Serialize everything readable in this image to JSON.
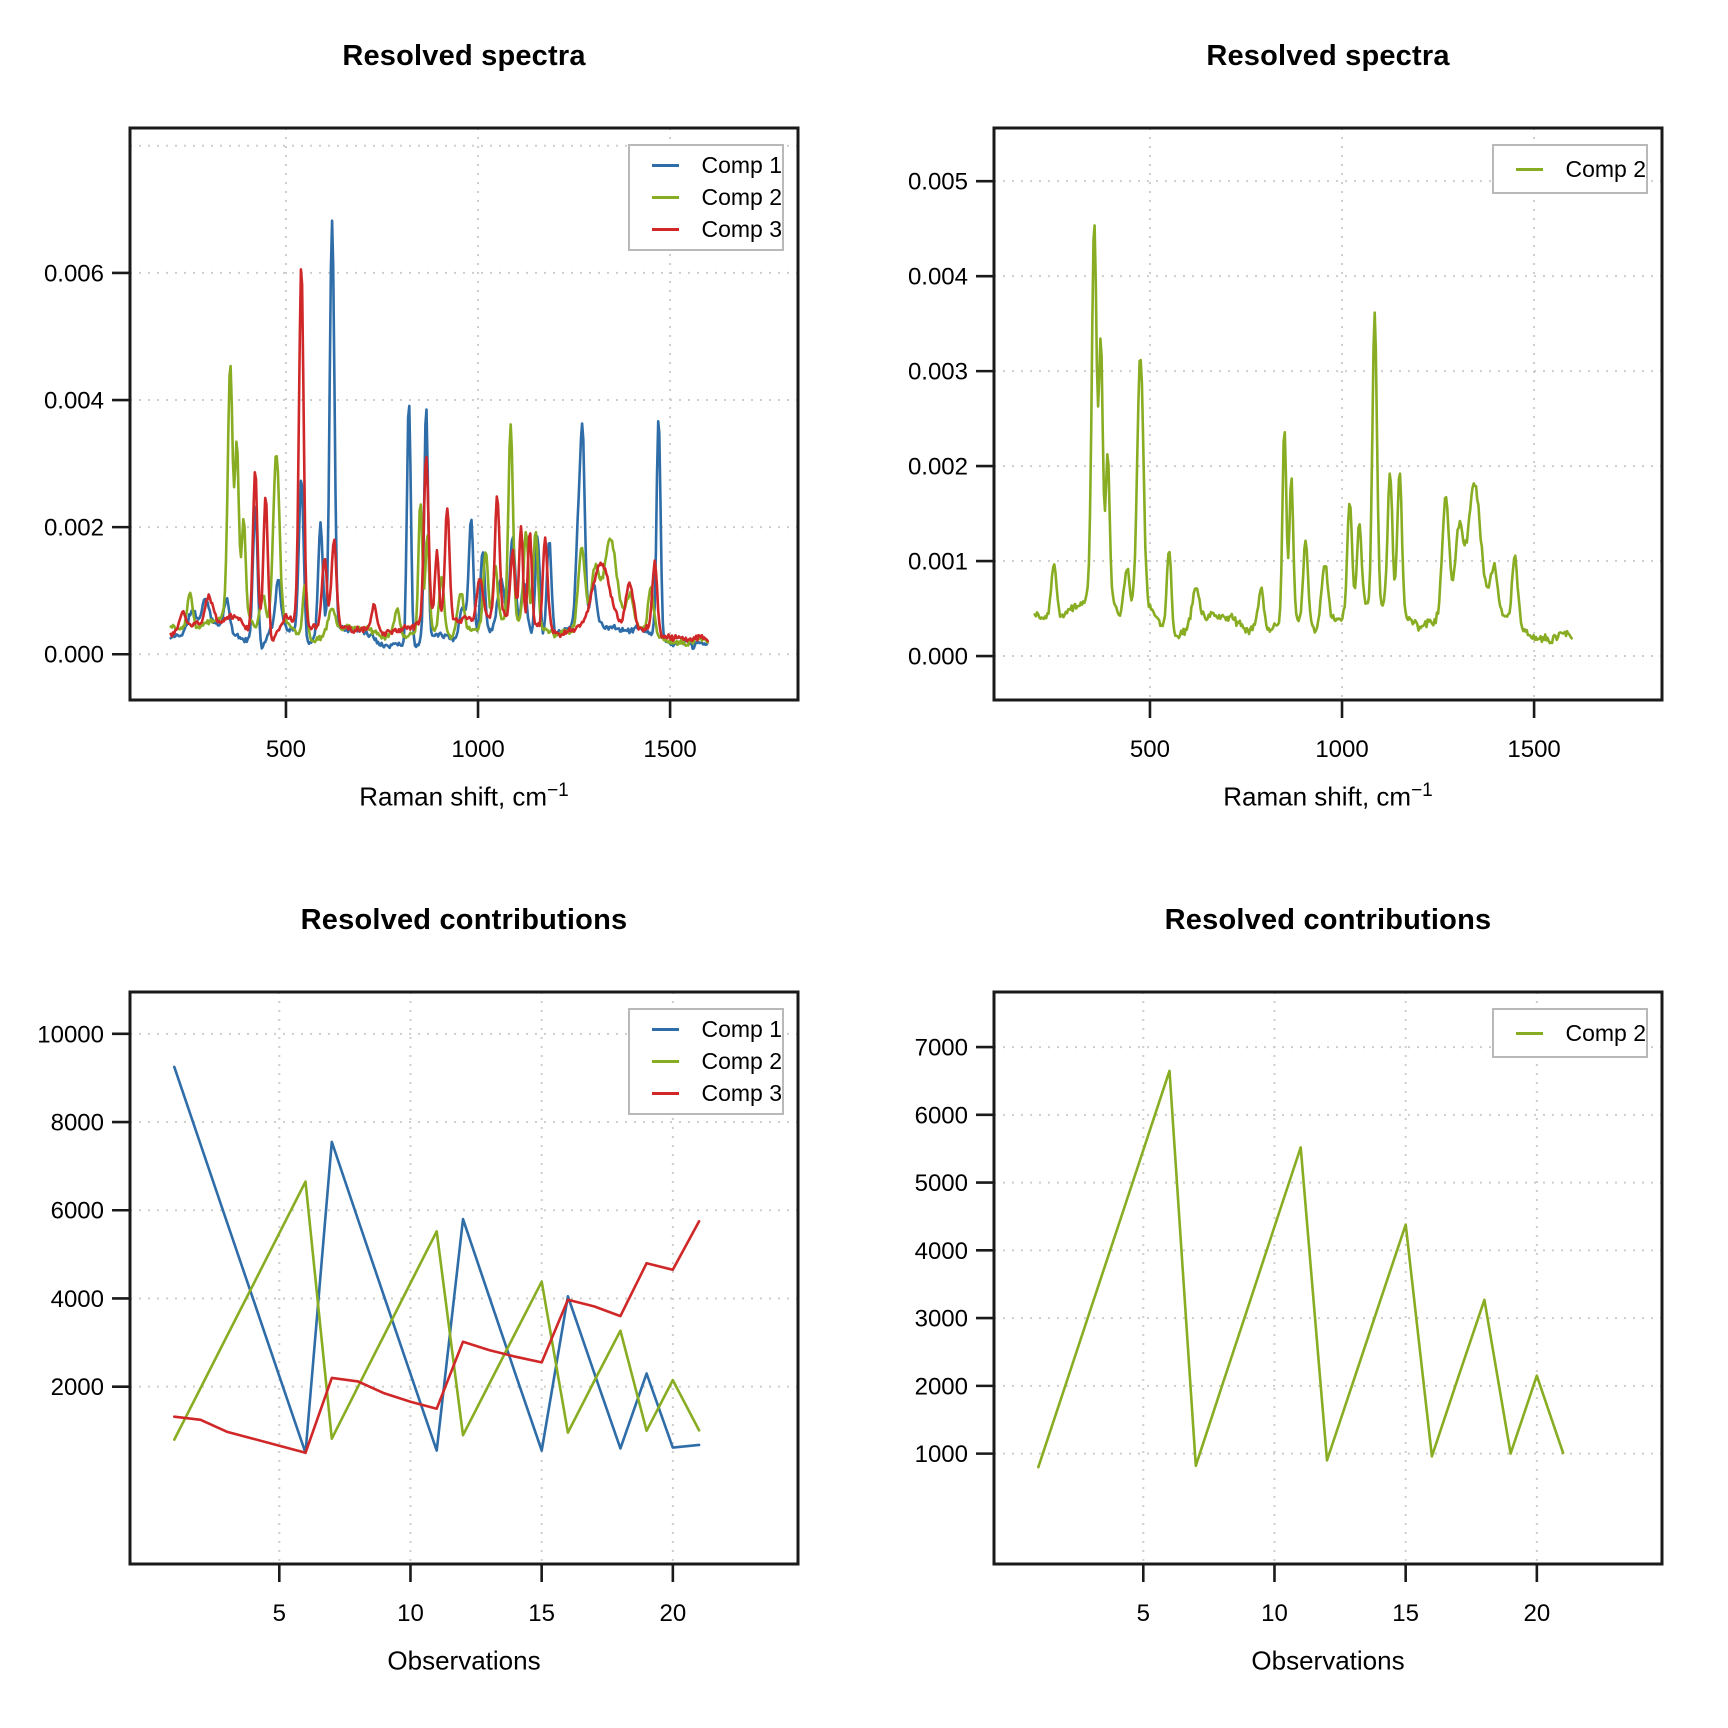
{
  "figure": {
    "background": "#ffffff"
  },
  "palette": {
    "comp1": "#2e6da8",
    "comp2": "#88ad23",
    "comp3": "#d02728",
    "grid": "#cdcdcd",
    "box": "#1a1a1a",
    "legend_border": "#b9b9b9"
  },
  "spectra": {
    "comp1": {
      "seed": 11,
      "noise": 3.5e-05,
      "wiggle": 0.00012,
      "baseline": [
        [
          200,
          0.00025
        ],
        [
          260,
          0.0004
        ],
        [
          310,
          0.0005
        ],
        [
          360,
          0.0003
        ],
        [
          400,
          0.0002
        ],
        [
          435,
          8e-05
        ],
        [
          460,
          0.0004
        ],
        [
          520,
          0.0004
        ],
        [
          555,
          0.0002
        ],
        [
          640,
          0.0004
        ],
        [
          700,
          0.0004
        ],
        [
          745,
          0.0002
        ],
        [
          790,
          0.00015
        ],
        [
          850,
          0.0002
        ],
        [
          900,
          0.00035
        ],
        [
          945,
          0.0002
        ],
        [
          1000,
          0.0003
        ],
        [
          1040,
          0.0004
        ],
        [
          1075,
          0.0004
        ],
        [
          1140,
          0.0003
        ],
        [
          1180,
          0.0002
        ],
        [
          1225,
          0.0004
        ],
        [
          1290,
          0.0004
        ],
        [
          1360,
          0.0004
        ],
        [
          1430,
          0.0004
        ],
        [
          1465,
          0.0003
        ],
        [
          1490,
          0.00015
        ],
        [
          1600,
          0.00015
        ]
      ],
      "peaks": [
        [
          255,
          0.0003,
          9
        ],
        [
          290,
          0.0004,
          10
        ],
        [
          345,
          0.0005,
          8
        ],
        [
          420,
          0.0022,
          6
        ],
        [
          480,
          0.0008,
          7
        ],
        [
          540,
          0.0025,
          6
        ],
        [
          590,
          0.0018,
          6
        ],
        [
          620,
          0.0065,
          6
        ],
        [
          820,
          0.00385,
          5
        ],
        [
          865,
          0.0037,
          5
        ],
        [
          960,
          0.0005,
          9
        ],
        [
          982,
          0.00185,
          6
        ],
        [
          1012,
          0.0013,
          6
        ],
        [
          1060,
          0.0008,
          9
        ],
        [
          1090,
          0.0015,
          7
        ],
        [
          1120,
          0.0008,
          7
        ],
        [
          1155,
          0.0016,
          6
        ],
        [
          1185,
          0.0016,
          6
        ],
        [
          1260,
          0.0014,
          6
        ],
        [
          1272,
          0.003,
          6
        ],
        [
          1300,
          0.0007,
          9
        ],
        [
          1470,
          0.00345,
          5
        ]
      ]
    },
    "comp2": {
      "seed": 22,
      "noise": 3.5e-05,
      "wiggle": 0.0001,
      "baseline": [
        [
          200,
          0.00045
        ],
        [
          250,
          0.0004
        ],
        [
          290,
          0.0005
        ],
        [
          330,
          0.0006
        ],
        [
          350,
          0.0008
        ],
        [
          380,
          0.0008
        ],
        [
          420,
          0.0004
        ],
        [
          460,
          0.0005
        ],
        [
          500,
          0.0005
        ],
        [
          530,
          0.0003
        ],
        [
          560,
          0.0002
        ],
        [
          600,
          0.0003
        ],
        [
          650,
          0.0004
        ],
        [
          700,
          0.0004
        ],
        [
          760,
          0.0003
        ],
        [
          820,
          0.0003
        ],
        [
          880,
          0.0004
        ],
        [
          930,
          0.0003
        ],
        [
          1000,
          0.0004
        ],
        [
          1060,
          0.0005
        ],
        [
          1110,
          0.0005
        ],
        [
          1160,
          0.0004
        ],
        [
          1200,
          0.0003
        ],
        [
          1260,
          0.0004
        ],
        [
          1330,
          0.0005
        ],
        [
          1420,
          0.0004
        ],
        [
          1470,
          0.0003
        ],
        [
          1490,
          0.0002
        ],
        [
          1600,
          0.0002
        ]
      ],
      "peaks": [
        [
          250,
          0.0006,
          7
        ],
        [
          355,
          0.0038,
          6
        ],
        [
          372,
          0.0025,
          5
        ],
        [
          390,
          0.0014,
          5
        ],
        [
          440,
          0.0005,
          7
        ],
        [
          475,
          0.0027,
          8
        ],
        [
          550,
          0.0009,
          6
        ],
        [
          620,
          0.0004,
          9
        ],
        [
          790,
          0.0004,
          7
        ],
        [
          850,
          0.00205,
          5
        ],
        [
          868,
          0.00155,
          5
        ],
        [
          905,
          0.0009,
          6
        ],
        [
          955,
          0.0006,
          8
        ],
        [
          1020,
          0.0012,
          6
        ],
        [
          1045,
          0.0009,
          6
        ],
        [
          1085,
          0.0031,
          6
        ],
        [
          1125,
          0.0015,
          6
        ],
        [
          1150,
          0.0015,
          6
        ],
        [
          1270,
          0.0013,
          9
        ],
        [
          1305,
          0.0009,
          10
        ],
        [
          1345,
          0.0013,
          16
        ],
        [
          1395,
          0.0005,
          9
        ],
        [
          1450,
          0.0007,
          7
        ]
      ]
    },
    "comp3": {
      "seed": 33,
      "noise": 3.5e-05,
      "wiggle": 0.00012,
      "baseline": [
        [
          200,
          0.0003
        ],
        [
          240,
          0.0004
        ],
        [
          280,
          0.0005
        ],
        [
          320,
          0.0005
        ],
        [
          370,
          0.0006
        ],
        [
          400,
          0.0004
        ],
        [
          430,
          0.0003
        ],
        [
          465,
          0.0002
        ],
        [
          500,
          0.0006
        ],
        [
          525,
          0.0005
        ],
        [
          560,
          0.0004
        ],
        [
          610,
          0.0005
        ],
        [
          660,
          0.0004
        ],
        [
          715,
          0.0004
        ],
        [
          770,
          0.0003
        ],
        [
          820,
          0.0004
        ],
        [
          880,
          0.0005
        ],
        [
          940,
          0.0005
        ],
        [
          1000,
          0.0006
        ],
        [
          1060,
          0.0006
        ],
        [
          1120,
          0.0005
        ],
        [
          1170,
          0.0004
        ],
        [
          1210,
          0.0003
        ],
        [
          1260,
          0.0004
        ],
        [
          1320,
          0.0005
        ],
        [
          1400,
          0.0004
        ],
        [
          1460,
          0.0004
        ],
        [
          1490,
          0.00025
        ],
        [
          1600,
          0.00025
        ]
      ],
      "peaks": [
        [
          230,
          0.0003,
          7
        ],
        [
          300,
          0.0004,
          9
        ],
        [
          420,
          0.00255,
          6
        ],
        [
          447,
          0.0022,
          6
        ],
        [
          540,
          0.0057,
          6
        ],
        [
          600,
          0.001,
          6
        ],
        [
          625,
          0.0013,
          6
        ],
        [
          730,
          0.0004,
          7
        ],
        [
          865,
          0.00265,
          6
        ],
        [
          893,
          0.0011,
          5
        ],
        [
          920,
          0.0018,
          6
        ],
        [
          1005,
          0.0006,
          7
        ],
        [
          1050,
          0.0019,
          6
        ],
        [
          1090,
          0.0011,
          6
        ],
        [
          1112,
          0.0015,
          5
        ],
        [
          1135,
          0.0015,
          5
        ],
        [
          1175,
          0.0014,
          6
        ],
        [
          1320,
          0.0009,
          22
        ],
        [
          1395,
          0.0007,
          10
        ],
        [
          1460,
          0.0011,
          6
        ]
      ]
    }
  },
  "chart_data": [
    {
      "id": "spectra-all",
      "type": "line",
      "title": "Resolved spectra",
      "xlabel": "Raman shift, cm",
      "xlabel_sup": "−1",
      "x_range": [
        94,
        1833
      ],
      "y_range": [
        -0.00072,
        0.00828
      ],
      "x_data_range": [
        200,
        1600
      ],
      "x_step": 3,
      "x_ticks": [
        {
          "v": 500,
          "label": "500"
        },
        {
          "v": 1000,
          "label": "1000"
        },
        {
          "v": 1500,
          "label": "1500"
        }
      ],
      "y_ticks": [
        {
          "v": 0,
          "label": "0.000"
        },
        {
          "v": 0.002,
          "label": "0.002"
        },
        {
          "v": 0.004,
          "label": "0.004"
        },
        {
          "v": 0.006,
          "label": "0.006"
        }
      ],
      "grid_y_extra": [
        0.008
      ],
      "legend": {
        "position": "top-right",
        "rows": 3
      },
      "series": [
        {
          "name": "Comp 1",
          "color": "#2e6da8",
          "kind": "spectrum",
          "spectrum_ref": "comp1"
        },
        {
          "name": "Comp 2",
          "color": "#88ad23",
          "kind": "spectrum",
          "spectrum_ref": "comp2"
        },
        {
          "name": "Comp 3",
          "color": "#d02728",
          "kind": "spectrum",
          "spectrum_ref": "comp3"
        }
      ]
    },
    {
      "id": "spectra-comp2",
      "type": "line",
      "title": "Resolved spectra",
      "xlabel": "Raman shift, cm",
      "xlabel_sup": "−1",
      "x_range": [
        94,
        1833
      ],
      "y_range": [
        -0.000463,
        0.00556
      ],
      "x_data_range": [
        200,
        1600
      ],
      "x_step": 3,
      "x_ticks": [
        {
          "v": 500,
          "label": "500"
        },
        {
          "v": 1000,
          "label": "1000"
        },
        {
          "v": 1500,
          "label": "1500"
        }
      ],
      "y_ticks": [
        {
          "v": 0,
          "label": "0.000"
        },
        {
          "v": 0.001,
          "label": "0.001"
        },
        {
          "v": 0.002,
          "label": "0.002"
        },
        {
          "v": 0.003,
          "label": "0.003"
        },
        {
          "v": 0.004,
          "label": "0.004"
        },
        {
          "v": 0.005,
          "label": "0.005"
        }
      ],
      "grid_y_extra": [],
      "legend": {
        "position": "top-right",
        "rows": 1
      },
      "series": [
        {
          "name": "Comp 2",
          "color": "#88ad23",
          "kind": "spectrum",
          "spectrum_ref": "comp2"
        }
      ]
    },
    {
      "id": "contributions-all",
      "type": "line",
      "title": "Resolved contributions",
      "xlabel": "Observations",
      "x_range": [
        -0.69,
        24.77
      ],
      "y_range": [
        -2020,
        10948
      ],
      "x_ticks": [
        {
          "v": 5,
          "label": "5"
        },
        {
          "v": 10,
          "label": "10"
        },
        {
          "v": 15,
          "label": "15"
        },
        {
          "v": 20,
          "label": "20"
        }
      ],
      "y_ticks": [
        {
          "v": 2000,
          "label": "2000"
        },
        {
          "v": 4000,
          "label": "4000"
        },
        {
          "v": 6000,
          "label": "6000"
        },
        {
          "v": 8000,
          "label": "8000"
        },
        {
          "v": 10000,
          "label": "10000"
        }
      ],
      "grid_y_extra": [],
      "legend": {
        "position": "top-right",
        "rows": 3
      },
      "x_start": 1,
      "series": [
        {
          "name": "Comp 1",
          "color": "#2e6da8",
          "kind": "values",
          "values": [
            9250,
            7490,
            5740,
            3990,
            2240,
            500,
            7550,
            5790,
            4040,
            2290,
            550,
            5800,
            4040,
            2290,
            550,
            4050,
            2320,
            600,
            2300,
            620,
            680
          ]
        },
        {
          "name": "Comp 2",
          "color": "#88ad23",
          "kind": "values",
          "values": [
            800,
            1970,
            3140,
            4310,
            5480,
            6650,
            820,
            2000,
            3170,
            4350,
            5520,
            900,
            2060,
            3220,
            4380,
            960,
            2120,
            3270,
            1000,
            2150,
            1010
          ]
        },
        {
          "name": "Comp 3",
          "color": "#d02728",
          "kind": "values",
          "values": [
            1320,
            1250,
            980,
            820,
            660,
            500,
            2200,
            2120,
            1850,
            1660,
            1500,
            3020,
            2830,
            2680,
            2550,
            3970,
            3820,
            3600,
            4800,
            4650,
            5750
          ]
        }
      ]
    },
    {
      "id": "contributions-comp2",
      "type": "line",
      "title": "Resolved contributions",
      "xlabel": "Observations",
      "x_range": [
        -0.69,
        24.77
      ],
      "y_range": [
        -629,
        7813
      ],
      "x_ticks": [
        {
          "v": 5,
          "label": "5"
        },
        {
          "v": 10,
          "label": "10"
        },
        {
          "v": 15,
          "label": "15"
        },
        {
          "v": 20,
          "label": "20"
        }
      ],
      "y_ticks": [
        {
          "v": 1000,
          "label": "1000"
        },
        {
          "v": 2000,
          "label": "2000"
        },
        {
          "v": 3000,
          "label": "3000"
        },
        {
          "v": 4000,
          "label": "4000"
        },
        {
          "v": 5000,
          "label": "5000"
        },
        {
          "v": 6000,
          "label": "6000"
        },
        {
          "v": 7000,
          "label": "7000"
        }
      ],
      "grid_y_extra": [],
      "legend": {
        "position": "top-right",
        "rows": 1
      },
      "x_start": 1,
      "series": [
        {
          "name": "Comp 2",
          "color": "#88ad23",
          "kind": "values",
          "values": [
            800,
            1970,
            3140,
            4310,
            5480,
            6650,
            820,
            2000,
            3170,
            4350,
            5520,
            900,
            2060,
            3220,
            4380,
            960,
            2120,
            3270,
            1000,
            2150,
            1010
          ]
        }
      ]
    }
  ]
}
